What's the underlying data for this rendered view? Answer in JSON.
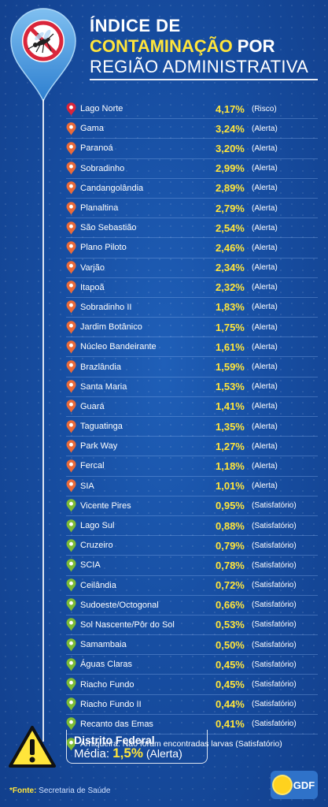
{
  "header": {
    "line1": "ÍNDICE DE",
    "line2_highlight": "CONTAMINAÇÃO",
    "line2_rest": " POR",
    "line3": "REGIÃO ADMINISTRATIVA"
  },
  "colors": {
    "red_marker": "#d9263b",
    "orange_marker": "#e96a3a",
    "green_marker": "#7dbb36",
    "accent_yellow": "#ffe53b"
  },
  "rows": [
    {
      "name": "Lago Norte",
      "pct": "4,17%",
      "status": "(Risco)",
      "marker": "red"
    },
    {
      "name": "Gama",
      "pct": "3,24%",
      "status": "(Alerta)",
      "marker": "orange"
    },
    {
      "name": "Paranoá",
      "pct": "3,20%",
      "status": "(Alerta)",
      "marker": "orange"
    },
    {
      "name": "Sobradinho",
      "pct": "2,99%",
      "status": "(Alerta)",
      "marker": "orange"
    },
    {
      "name": "Candangolândia",
      "pct": "2,89%",
      "status": "(Alerta)",
      "marker": "orange"
    },
    {
      "name": "Planaltina",
      "pct": "2,79%",
      "status": "(Alerta)",
      "marker": "orange"
    },
    {
      "name": "São Sebastião",
      "pct": "2,54%",
      "status": "(Alerta)",
      "marker": "orange"
    },
    {
      "name": "Plano Piloto",
      "pct": "2,46%",
      "status": "(Alerta)",
      "marker": "orange"
    },
    {
      "name": "Varjão",
      "pct": "2,34%",
      "status": "(Alerta)",
      "marker": "orange"
    },
    {
      "name": "Itapoã",
      "pct": "2,32%",
      "status": "(Alerta)",
      "marker": "orange"
    },
    {
      "name": "Sobradinho II",
      "pct": "1,83%",
      "status": "(Alerta)",
      "marker": "orange"
    },
    {
      "name": "Jardim Botânico",
      "pct": "1,75%",
      "status": "(Alerta)",
      "marker": "orange"
    },
    {
      "name": "Núcleo Bandeirante",
      "pct": "1,61%",
      "status": "(Alerta)",
      "marker": "orange"
    },
    {
      "name": "Brazlândia",
      "pct": "1,59%",
      "status": "(Alerta)",
      "marker": "orange"
    },
    {
      "name": "Santa Maria",
      "pct": "1,53%",
      "status": "(Alerta)",
      "marker": "orange"
    },
    {
      "name": "Guará",
      "pct": "1,41%",
      "status": "(Alerta)",
      "marker": "orange"
    },
    {
      "name": "Taguatinga",
      "pct": "1,35%",
      "status": "(Alerta)",
      "marker": "orange"
    },
    {
      "name": "Park Way",
      "pct": "1,27%",
      "status": "(Alerta)",
      "marker": "orange"
    },
    {
      "name": "Fercal",
      "pct": "1,18%",
      "status": "(Alerta)",
      "marker": "orange"
    },
    {
      "name": "SIA",
      "pct": "1,01%",
      "status": "(Alerta)",
      "marker": "orange"
    },
    {
      "name": "Vicente Pires",
      "pct": "0,95%",
      "status": "(Satisfatório)",
      "marker": "green"
    },
    {
      "name": "Lago Sul",
      "pct": "0,88%",
      "status": "(Satisfatório)",
      "marker": "green"
    },
    {
      "name": "Cruzeiro",
      "pct": "0,79%",
      "status": "(Satisfatório)",
      "marker": "green"
    },
    {
      "name": "SCIA",
      "pct": "0,78%",
      "status": "(Satisfatório)",
      "marker": "green"
    },
    {
      "name": "Ceilândia",
      "pct": "0,72%",
      "status": "(Satisfatório)",
      "marker": "green"
    },
    {
      "name": "Sudoeste/Octogonal",
      "pct": "0,66%",
      "status": "(Satisfatório)",
      "marker": "green"
    },
    {
      "name": "Sol Nascente/Pôr do Sol",
      "pct": "0,53%",
      "status": "(Satisfatório)",
      "marker": "green"
    },
    {
      "name": "Samambaia",
      "pct": "0,50%",
      "status": "(Satisfatório)",
      "marker": "green"
    },
    {
      "name": "Águas Claras",
      "pct": "0,45%",
      "status": "(Satisfatório)",
      "marker": "green"
    },
    {
      "name": "Riacho Fundo",
      "pct": "0,45%",
      "status": "(Satisfatório)",
      "marker": "green"
    },
    {
      "name": "Riacho Fundo II",
      "pct": "0,44%",
      "status": "(Satisfatório)",
      "marker": "green"
    },
    {
      "name": "Recanto das Emas",
      "pct": "0,41%",
      "status": "(Satisfatório)",
      "marker": "green"
    }
  ],
  "last_row": {
    "text": "Arniqueira: Não foram encontradas larvas (Satisfatório)",
    "marker": "green"
  },
  "footer": {
    "df_title": "Distrito Federal",
    "avg_label": "Média: ",
    "avg_value": "1,5%",
    "avg_status": " (Alerta)",
    "source_label": "*Fonte:",
    "source_text": " Secretaria de Saúde",
    "logo_text": "GDF"
  }
}
